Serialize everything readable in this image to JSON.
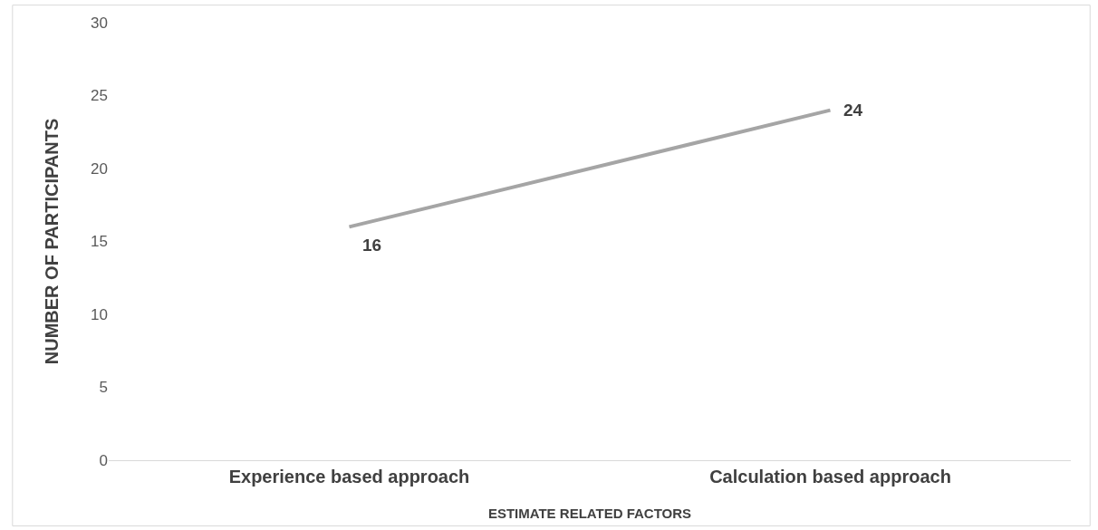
{
  "chart_data": {
    "type": "line",
    "xlabel": "ESTIMATE RELATED FACTORS",
    "ylabel": "NUMBER OF PARTICIPANTS",
    "categories": [
      "Experience based approach",
      "Calculation based approach"
    ],
    "series": [
      {
        "color": "#a5a5a5",
        "values": [
          16,
          24
        ]
      }
    ],
    "ylim": [
      0,
      30
    ],
    "yticks": [
      0,
      5,
      10,
      15,
      20,
      25,
      30
    ],
    "grid": false,
    "marker": "none",
    "line_style": "solid",
    "data_labels": true
  }
}
